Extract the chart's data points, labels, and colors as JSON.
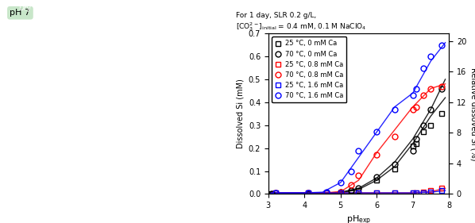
{
  "title_line1": "For 1 day, SLR 0.2 g/L,",
  "title_line2": "[CO³⁻²]_initial = 0.4 mM, 0.1 M NaClO₄",
  "xlabel": "pH",
  "xlabel_sub": "exp",
  "ylabel_left": "Dissolved Si (mM)",
  "ylabel_right": "Relative dissoved Si (%)",
  "xlim": [
    3,
    8
  ],
  "ylim_left": [
    0,
    0.7
  ],
  "ylim_right": [
    0,
    21
  ],
  "yticks_left": [
    0.0,
    0.1,
    0.2,
    0.3,
    0.4,
    0.5,
    0.6,
    0.7
  ],
  "yticks_right": [
    0,
    4,
    8,
    12,
    16,
    20
  ],
  "xticks": [
    3,
    4,
    5,
    6,
    7,
    8
  ],
  "series": [
    {
      "label": "25 °C, 0 mM Ca",
      "color": "black",
      "marker": "s",
      "x": [
        3.1,
        4.1,
        5.0,
        5.3,
        5.5,
        6.0,
        6.5,
        7.0,
        7.1,
        7.3,
        7.5,
        7.8
      ],
      "y": [
        0.0,
        0.0,
        0.005,
        0.01,
        0.015,
        0.06,
        0.11,
        0.21,
        0.22,
        0.27,
        0.3,
        0.35
      ],
      "curve_x": [
        3.0,
        4.0,
        5.0,
        5.5,
        6.0,
        6.5,
        7.0,
        7.5,
        7.9
      ],
      "curve_y": [
        0.0,
        0.0,
        0.005,
        0.02,
        0.06,
        0.12,
        0.22,
        0.34,
        0.42
      ]
    },
    {
      "label": "70 °C, 0 mM Ca",
      "color": "black",
      "marker": "o",
      "x": [
        3.1,
        4.1,
        5.0,
        5.3,
        5.5,
        6.0,
        6.5,
        7.0,
        7.1,
        7.3,
        7.5,
        7.8
      ],
      "y": [
        0.0,
        0.0,
        0.01,
        0.015,
        0.025,
        0.075,
        0.13,
        0.19,
        0.24,
        0.3,
        0.37,
        0.46
      ],
      "curve_x": [
        3.0,
        4.0,
        5.0,
        5.5,
        6.0,
        6.5,
        7.0,
        7.5,
        7.9
      ],
      "curve_y": [
        0.0,
        0.0,
        0.008,
        0.025,
        0.07,
        0.14,
        0.24,
        0.37,
        0.5
      ]
    },
    {
      "label": "25 °C, 0.8 mM Ca",
      "color": "red",
      "marker": "s",
      "x": [
        3.2,
        4.1,
        4.6,
        5.0,
        5.5,
        6.0,
        6.5,
        7.0,
        7.1,
        7.3,
        7.5,
        7.8
      ],
      "y": [
        0.005,
        0.005,
        0.005,
        0.005,
        0.005,
        0.005,
        0.005,
        0.005,
        0.005,
        0.01,
        0.015,
        0.025
      ],
      "curve_x": [
        3.0,
        4.0,
        5.0,
        6.0,
        7.0,
        7.5,
        7.9
      ],
      "curve_y": [
        0.005,
        0.005,
        0.005,
        0.005,
        0.005,
        0.01,
        0.025
      ]
    },
    {
      "label": "70 °C, 0.8 mM Ca",
      "color": "red",
      "marker": "o",
      "x": [
        3.2,
        4.1,
        4.6,
        5.0,
        5.3,
        5.5,
        6.0,
        6.5,
        7.0,
        7.1,
        7.3,
        7.5,
        7.8
      ],
      "y": [
        0.005,
        0.005,
        0.005,
        0.01,
        0.04,
        0.08,
        0.17,
        0.25,
        0.37,
        0.38,
        0.43,
        0.46,
        0.47
      ],
      "curve_x": [
        3.0,
        4.0,
        4.5,
        5.0,
        5.5,
        6.0,
        6.5,
        7.0,
        7.5,
        7.9
      ],
      "curve_y": [
        0.005,
        0.005,
        0.005,
        0.01,
        0.06,
        0.18,
        0.28,
        0.38,
        0.46,
        0.48
      ]
    },
    {
      "label": "25 °C, 1.6 mM Ca",
      "color": "blue",
      "marker": "s",
      "x": [
        3.2,
        4.1,
        4.6,
        5.0,
        5.5,
        6.0,
        6.5,
        7.0,
        7.1,
        7.3,
        7.5,
        7.8
      ],
      "y": [
        0.005,
        0.005,
        0.005,
        0.005,
        0.005,
        0.005,
        0.005,
        0.005,
        0.005,
        0.005,
        0.01,
        0.015
      ],
      "curve_x": [
        3.0,
        4.0,
        5.0,
        6.0,
        7.0,
        7.5,
        7.9
      ],
      "curve_y": [
        0.005,
        0.005,
        0.005,
        0.005,
        0.005,
        0.008,
        0.015
      ]
    },
    {
      "label": "70 °C, 1.6 mM Ca",
      "color": "blue",
      "marker": "o",
      "x": [
        3.2,
        4.1,
        4.6,
        5.0,
        5.3,
        5.5,
        6.0,
        6.5,
        7.0,
        7.1,
        7.3,
        7.5,
        7.8
      ],
      "y": [
        0.005,
        0.005,
        0.01,
        0.05,
        0.1,
        0.19,
        0.27,
        0.37,
        0.43,
        0.46,
        0.55,
        0.6,
        0.65
      ],
      "curve_x": [
        3.0,
        4.0,
        4.5,
        5.0,
        5.5,
        6.0,
        6.5,
        7.0,
        7.5,
        7.9
      ],
      "curve_y": [
        0.005,
        0.005,
        0.008,
        0.05,
        0.16,
        0.27,
        0.38,
        0.44,
        0.58,
        0.66
      ]
    }
  ],
  "left_panel_bg": "#c8e6c9",
  "left_panel_label": "pH 7",
  "figure_width": 5.98,
  "figure_height": 2.81
}
